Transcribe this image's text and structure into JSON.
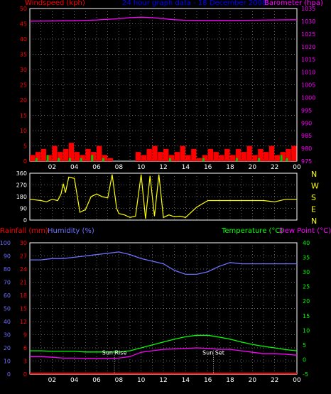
{
  "header": {
    "windspeed_label": "Windspeed (kph)",
    "title": "24 hour graph data - 18 December 2008",
    "barometer_label": "Barometer (hpa)",
    "rainfall_label": "Rainfall (mm)",
    "humidity_label": "Humidity (%)",
    "temperature_label": "Temperature (°C)",
    "dewpoint_label": "Dew Point (°C)",
    "sunrise_label": "Sun Rise",
    "sunset_label": "Sun Set"
  },
  "colors": {
    "windspeed": "#ff0000",
    "gust": "#00cc00",
    "barometer": "#ff00ff",
    "title": "#0000ff",
    "direction": "#ffff00",
    "compass": "#ffff00",
    "rain": "#ff0000",
    "humidity": "#6f6fff",
    "temperature": "#00ff00",
    "dewpoint": "#ff00ff",
    "axis": "#ffffff",
    "grid": "#888888"
  },
  "chart_data": [
    {
      "type": "bar",
      "title": "24 hour graph data - 18 December 2008",
      "ylabel": "Windspeed (kph)",
      "ylabel_right": "Barometer (hpa)",
      "ylim": [
        0,
        50
      ],
      "ylim_right": [
        975,
        1035
      ],
      "yticks": [
        0,
        5,
        10,
        15,
        20,
        25,
        30,
        35,
        40,
        45,
        50
      ],
      "yticks_right": [
        975,
        980,
        985,
        990,
        995,
        1000,
        1005,
        1010,
        1015,
        1020,
        1025,
        1030,
        1035
      ],
      "x_ticks": [
        "02",
        "04",
        "06",
        "08",
        "10",
        "12",
        "14",
        "16",
        "18",
        "20",
        "22",
        "00"
      ],
      "xlim_hours": [
        0,
        24
      ],
      "series": [
        {
          "name": "Barometer (hpa)",
          "axis": "right",
          "x": [
            0,
            2,
            4,
            6,
            8,
            9,
            10,
            11,
            12,
            13,
            14,
            16,
            18,
            20,
            22,
            24
          ],
          "values": [
            1030.0,
            1030.1,
            1030.2,
            1030.5,
            1031.0,
            1031.4,
            1031.6,
            1031.4,
            1031.0,
            1030.6,
            1030.4,
            1030.3,
            1030.3,
            1030.4,
            1030.5,
            1030.6
          ]
        },
        {
          "name": "Windspeed (kph)",
          "axis": "left",
          "x": [
            0.0,
            0.5,
            1.0,
            1.5,
            2.0,
            2.5,
            3.0,
            3.5,
            4.0,
            4.5,
            5.0,
            5.5,
            6.0,
            6.5,
            7.0,
            8.0,
            9.0,
            9.5,
            10.0,
            10.5,
            11.0,
            11.5,
            12.0,
            12.5,
            13.0,
            13.5,
            14.0,
            14.5,
            15.0,
            15.5,
            16.0,
            16.5,
            17.0,
            17.5,
            18.0,
            18.5,
            19.0,
            19.5,
            20.0,
            20.5,
            21.0,
            21.5,
            22.0,
            22.5,
            23.0,
            23.5
          ],
          "values": [
            2,
            3,
            4,
            2,
            5,
            3,
            4,
            6,
            3,
            2,
            4,
            3,
            5,
            2,
            1,
            0,
            0,
            3,
            2,
            4,
            5,
            3,
            4,
            2,
            3,
            5,
            2,
            4,
            1,
            2,
            4,
            3,
            2,
            4,
            2,
            4,
            3,
            5,
            2,
            4,
            3,
            5,
            2,
            3,
            4,
            5
          ]
        },
        {
          "name": "Gust",
          "x": [
            0.5,
            1.5,
            2.5,
            3.5,
            4.5,
            5.5,
            6.5,
            12.5,
            15.5,
            18.5,
            20.5,
            22.5,
            23.0
          ],
          "values": [
            1,
            2,
            1,
            1,
            1,
            2,
            1,
            1,
            1,
            1,
            1,
            2,
            1
          ]
        }
      ]
    },
    {
      "type": "line",
      "ylabel": "Wind direction",
      "ylim": [
        0,
        360
      ],
      "yticks": [
        0,
        90,
        180,
        270,
        360
      ],
      "compass": [
        "N",
        "W",
        "S",
        "E",
        "N"
      ],
      "series": [
        {
          "name": "Wind direction",
          "x": [
            0,
            1.0,
            1.5,
            2.0,
            2.5,
            2.8,
            3.0,
            3.2,
            3.5,
            4.0,
            4.5,
            5.0,
            5.5,
            6.0,
            6.5,
            7.0,
            7.4,
            7.8,
            8.0,
            8.5,
            9.0,
            9.5,
            10.0,
            10.4,
            10.8,
            11.2,
            11.6,
            12.0,
            12.5,
            13.0,
            13.5,
            14.0,
            15.0,
            16.0,
            17.0,
            18.0,
            19.0,
            20.0,
            21.0,
            22.0,
            23.0,
            24.0
          ],
          "values": [
            160,
            150,
            140,
            160,
            150,
            200,
            280,
            210,
            330,
            320,
            60,
            80,
            180,
            200,
            180,
            170,
            350,
            90,
            50,
            40,
            20,
            30,
            350,
            10,
            340,
            30,
            350,
            20,
            40,
            25,
            30,
            20,
            100,
            150,
            150,
            150,
            150,
            150,
            150,
            140,
            160,
            160
          ]
        }
      ]
    },
    {
      "type": "line",
      "ylabel": "Rainfall (mm)",
      "ylabel2": "Humidity (%)",
      "ylabel_right": "Temperature (°C)",
      "ylabel_right2": "Dew Point (°C)",
      "yticks_humidity": [
        0,
        10,
        20,
        30,
        40,
        50,
        60,
        70,
        80,
        90,
        100
      ],
      "yticks_rain": [
        0,
        3,
        6,
        9,
        12,
        15,
        18,
        21,
        24,
        27,
        30
      ],
      "yticks_temp": [
        -5,
        0,
        5,
        10,
        15,
        20,
        25,
        30,
        35,
        40
      ],
      "x_ticks": [
        "02",
        "04",
        "06",
        "08",
        "10",
        "12",
        "14",
        "16",
        "18",
        "20",
        "22",
        "00"
      ],
      "annotations": [
        {
          "text": "Sun Rise",
          "x": 7.6
        },
        {
          "text": "Sun Set",
          "x": 16.5
        }
      ],
      "series": [
        {
          "name": "Humidity (%)",
          "x": [
            0,
            1,
            2,
            3,
            4,
            5,
            6,
            7,
            8,
            9,
            10,
            11,
            12,
            13,
            14,
            15,
            16,
            17,
            18,
            19,
            20,
            21,
            22,
            23,
            24
          ],
          "values": [
            87,
            87,
            88,
            88,
            89,
            90,
            91,
            92,
            93,
            91,
            88,
            86,
            84,
            79,
            76,
            76,
            78,
            82,
            85,
            84,
            84,
            84,
            84,
            84,
            84
          ]
        },
        {
          "name": "Temperature (°C)",
          "x": [
            0,
            1,
            2,
            3,
            4,
            5,
            6,
            7,
            8,
            9,
            10,
            11,
            12,
            13,
            14,
            15,
            16,
            17,
            18,
            19,
            20,
            21,
            22,
            23,
            24
          ],
          "values": [
            3,
            3,
            2.8,
            2.8,
            2.8,
            2.6,
            2.6,
            2.6,
            2.6,
            3,
            4,
            5,
            6,
            7,
            7.8,
            8.3,
            8.3,
            7.7,
            7,
            6,
            5.2,
            4.5,
            4,
            3.4,
            3
          ]
        },
        {
          "name": "Dew Point (°C)",
          "x": [
            0,
            1,
            2,
            3,
            4,
            5,
            6,
            7,
            8,
            9,
            10,
            11,
            12,
            13,
            14,
            15,
            16,
            17,
            18,
            19,
            20,
            21,
            22,
            23,
            24
          ],
          "values": [
            1,
            1,
            0.8,
            0.5,
            0.5,
            0.3,
            0.3,
            0.3,
            0.5,
            1,
            2.5,
            3,
            3.5,
            3.6,
            3.8,
            4,
            3.8,
            3.5,
            3.5,
            3,
            2.5,
            2,
            2,
            1.8,
            1.5
          ]
        },
        {
          "name": "Rainfall (mm)",
          "x": [
            0,
            24
          ],
          "values": [
            0,
            0
          ]
        }
      ]
    }
  ]
}
